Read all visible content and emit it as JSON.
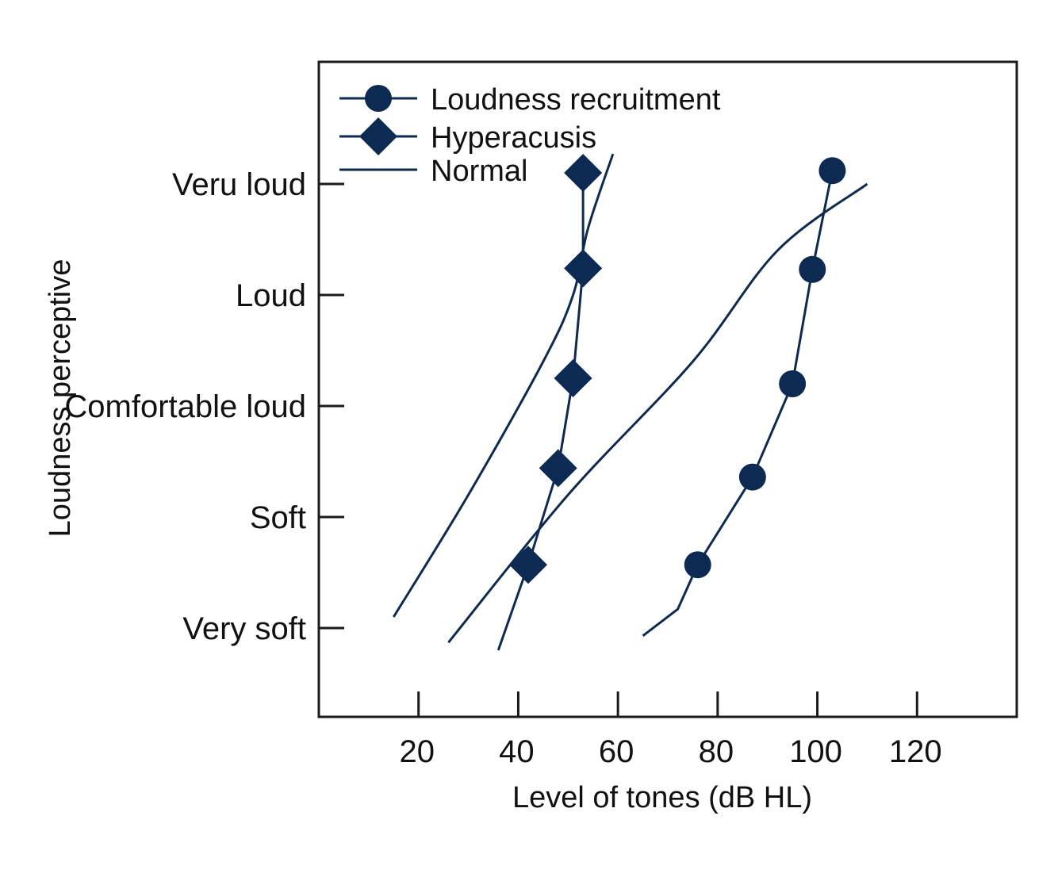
{
  "chart_data": {
    "type": "line",
    "title": "",
    "xlabel": "Level of tones (dB HL)",
    "ylabel": "Loudness perceptive",
    "xlim": [
      0,
      140
    ],
    "x_ticks": [
      20,
      40,
      60,
      80,
      100,
      120
    ],
    "y_categories": [
      "Very soft",
      "Soft",
      "Comfortable loud",
      "Loud",
      "Veru loud"
    ],
    "ylim": [
      -0.8,
      5.1
    ],
    "grid": false,
    "legend_position": "top-left",
    "color": "#0d2a52",
    "legend": [
      {
        "label": "Loudness recruitment",
        "marker": "circle"
      },
      {
        "label": "Hyperacusis",
        "marker": "diamond"
      },
      {
        "label": "Normal",
        "marker": "none"
      }
    ],
    "series": [
      {
        "name": "Loudness recruitment",
        "marker": "circle",
        "line_points": [
          {
            "x": 65,
            "y": -0.07
          },
          {
            "x": 72,
            "y": 0.17
          }
        ],
        "points": [
          {
            "x": 76,
            "y": 0.57
          },
          {
            "x": 87,
            "y": 1.36
          },
          {
            "x": 95,
            "y": 2.2
          },
          {
            "x": 99,
            "y": 3.23
          },
          {
            "x": 103,
            "y": 4.12
          }
        ]
      },
      {
        "name": "Hyperacusis",
        "marker": "diamond",
        "line_points": [
          {
            "x": 36,
            "y": -0.2
          }
        ],
        "points": [
          {
            "x": 42,
            "y": 0.57
          },
          {
            "x": 48,
            "y": 1.44
          },
          {
            "x": 51,
            "y": 2.25
          },
          {
            "x": 53,
            "y": 3.24
          },
          {
            "x": 53,
            "y": 4.1
          }
        ]
      },
      {
        "name": "Normal",
        "marker": "none",
        "points": [
          {
            "x": 15,
            "y": 0.1
          },
          {
            "x": 30,
            "y": 1.2
          },
          {
            "x": 45,
            "y": 2.4
          },
          {
            "x": 51,
            "y": 3.0
          },
          {
            "x": 54,
            "y": 3.6
          },
          {
            "x": 59,
            "y": 4.27
          }
        ]
      },
      {
        "name": "Normal",
        "marker": "none",
        "points": [
          {
            "x": 26,
            "y": -0.13
          },
          {
            "x": 50,
            "y": 1.2
          },
          {
            "x": 75,
            "y": 2.4
          },
          {
            "x": 92,
            "y": 3.4
          },
          {
            "x": 110,
            "y": 4.0
          }
        ]
      }
    ]
  }
}
